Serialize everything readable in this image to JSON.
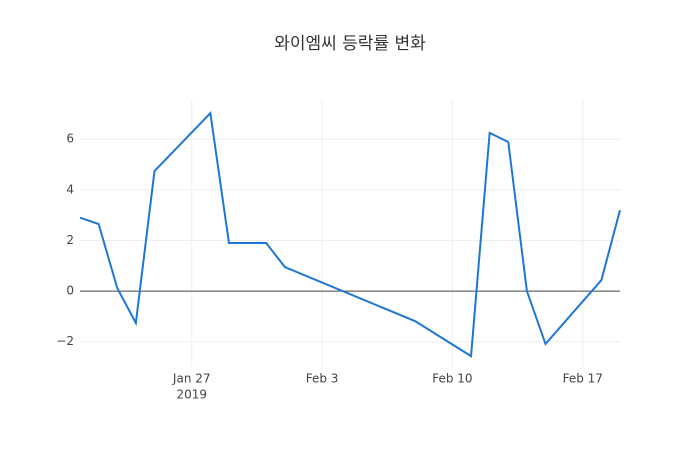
{
  "chart_data": {
    "type": "line",
    "title": "와이엠씨 등락률 변화",
    "x": [
      "2019-01-21",
      "2019-01-22",
      "2019-01-23",
      "2019-01-24",
      "2019-01-25",
      "2019-01-28",
      "2019-01-29",
      "2019-01-31",
      "2019-02-01",
      "2019-02-08",
      "2019-02-11",
      "2019-02-12",
      "2019-02-13",
      "2019-02-14",
      "2019-02-15",
      "2019-02-18",
      "2019-02-19"
    ],
    "series": [
      {
        "color": "#1f77d4",
        "values": [
          2.9,
          2.65,
          0.12,
          -1.26,
          4.74,
          7.03,
          1.9,
          1.9,
          0.95,
          -1.19,
          -2.57,
          6.25,
          5.89,
          0,
          -2.09,
          0.43,
          3.2
        ]
      }
    ],
    "xlim": [
      "2019-01-21",
      "2019-02-19"
    ],
    "xticks": [
      {
        "value": "2019-01-27",
        "label": "Jan 27"
      },
      {
        "value": "2019-02-03",
        "label": "Feb 3"
      },
      {
        "value": "2019-02-10",
        "label": "Feb 10"
      },
      {
        "value": "2019-02-17",
        "label": "Feb 17"
      }
    ],
    "x_axis_year": "2019",
    "ylim": [
      -3.0,
      7.55
    ],
    "yticks": [
      {
        "value": -2,
        "label": "−2"
      },
      0,
      2,
      4,
      6
    ],
    "grid": true
  }
}
